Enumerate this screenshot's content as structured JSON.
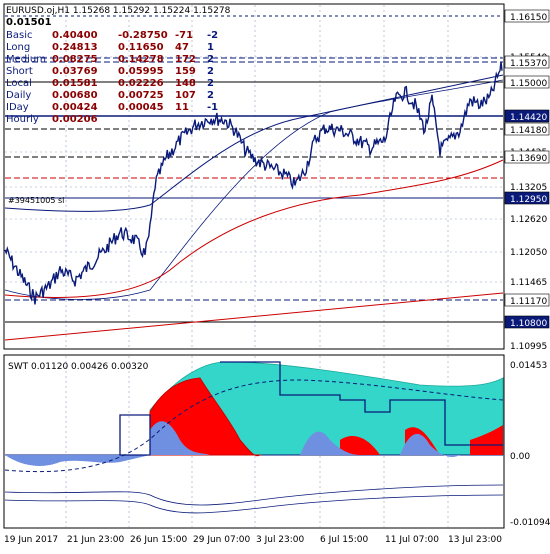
{
  "header": {
    "symbol_line": "EURUSD.oj,H1  1.15268 1.15292 1.15224 1.15278",
    "value": "0.01501"
  },
  "table": [
    {
      "name": "Basic",
      "v1": "0.40400",
      "v2": "-0.28750",
      "v3": "-71",
      "v4": "-2"
    },
    {
      "name": "Long",
      "v1": "0.24813",
      "v2": "0.11650",
      "v3": "47",
      "v4": "1"
    },
    {
      "name": "Medium",
      "v1": "0.08275",
      "v2": "0.14278",
      "v3": "172",
      "v4": "2"
    },
    {
      "name": "Short",
      "v1": "0.03769",
      "v2": "0.05995",
      "v3": "159",
      "v4": "2"
    },
    {
      "name": "Local",
      "v1": "0.01581",
      "v2": "0.02226",
      "v3": "148",
      "v4": "2"
    },
    {
      "name": "Daily",
      "v1": "0.00680",
      "v2": "0.00725",
      "v3": "107",
      "v4": "2"
    },
    {
      "name": "IDay",
      "v1": "0.00424",
      "v2": "0.00045",
      "v3": "11",
      "v4": "-1"
    },
    {
      "name": "Hourly",
      "v1": "0.00206",
      "v2": "",
      "v3": "",
      "v4": ""
    }
  ],
  "main_price_labels": [
    "1.16150",
    "1.15370",
    "1.15000",
    "1.14420",
    "1.14180",
    "1.13690",
    "1.12950",
    "1.11170",
    "1.10800"
  ],
  "main_axis_labels": [
    "1.15540",
    "1.14425",
    "1.13205",
    "1.12620",
    "1.12050",
    "1.11465",
    "1.10995"
  ],
  "chart_label_left": "#39451005 sl",
  "sub_header": "SWT 0.01120 0.00426 0.00320",
  "sub_axis_labels": [
    "0.01453",
    "0.00",
    "-0.01094"
  ],
  "x_labels": [
    "19 Jun 2017",
    "21 Jun 23:00",
    "26 Jun 15:00",
    "29 Jun 07:00",
    "3 Jul 23:00",
    "6 Jul 15:00",
    "11 Jul 07:00",
    "13 Jul 23:00"
  ],
  "colors": {
    "price": "#0a1a7a",
    "ma": "#0a1a7a",
    "red": "#cc0000",
    "teal": "#33d6c8",
    "fillred": "#ff0000",
    "fillblue": "#6f8fe0",
    "grid": "#8fa0c0"
  }
}
